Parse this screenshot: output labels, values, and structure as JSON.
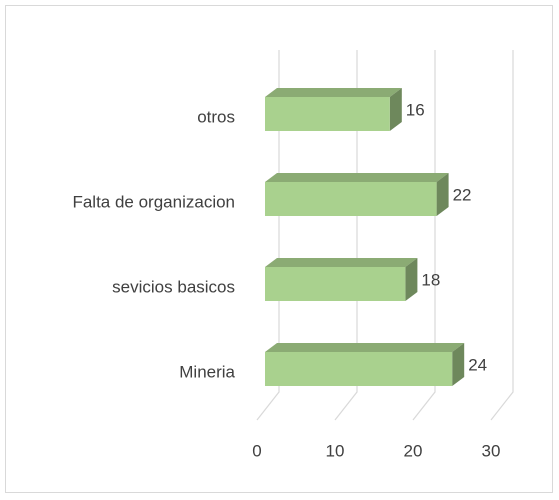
{
  "chart_data": {
    "type": "bar3d_horizontal",
    "categories": [
      "otros",
      "Falta de organizacion",
      "sevicios basicos",
      "Mineria"
    ],
    "values": [
      16,
      22,
      18,
      24
    ],
    "color": "#a9d18e",
    "xlim": [
      0,
      30
    ],
    "xticks": [
      0,
      10,
      20,
      30
    ],
    "grid": true
  }
}
